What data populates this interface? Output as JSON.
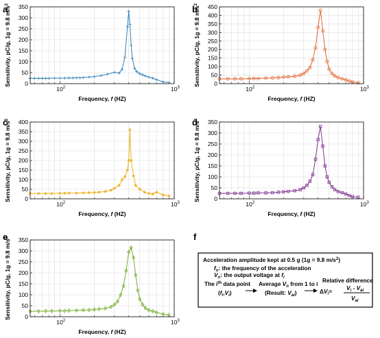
{
  "figure": {
    "panel_f_letter": "f",
    "box": {
      "line1": "Acceleration amplitude kept at 0.5 g (1g = 9.8 m/s",
      "line1_sup": "2",
      "line1_end": ")",
      "fn_sym": "f",
      "fn_sub": "n",
      "fn_text": ": the frequency of the acceleration",
      "vn_sym": "V",
      "vn_sub": "n",
      "vn_text": ": the output voltage at",
      "vn_f": "f",
      "vn_fsub": "i",
      "step1_a": "The i",
      "step1_sup": "th",
      "step1_b": " data point",
      "step1_pair_open": "(",
      "step1_f": "f",
      "step1_fi": "i",
      "step1_comma": ",",
      "step1_V": "V",
      "step1_Vi": "i",
      "step1_pair_close": ")",
      "step2_a": "Average ",
      "step2_V": "V",
      "step2_n": "n",
      "step2_b": " from 1 to i",
      "step2_c": "(Result: ",
      "step2_V2": "V",
      "step2_ai": "ai",
      "step2_d": ")",
      "step3_title": "Relative difference",
      "step3_delta": "Δ",
      "step3_V": "V",
      "step3_i": "i",
      "step3_eq": "=",
      "step3_num_V": "V",
      "step3_num_i": "i",
      "step3_num_minus": " - ",
      "step3_num_V2": "V",
      "step3_num_ai": "ai",
      "step3_den_V": "V",
      "step3_den_ai": "ai"
    }
  },
  "chart_data": [
    {
      "panel": "a",
      "type": "line",
      "color": "#2f7fb8",
      "marker": "plus",
      "xlabel": "Frequency, f (HZ)",
      "ylabel": "Sensitivity, pC/g, 1g = 9.8 m/s2",
      "xscale": "log",
      "xlim": [
        55,
        1000
      ],
      "ylim": [
        0,
        350
      ],
      "yticks": [
        0,
        50,
        100,
        150,
        200,
        250,
        300,
        350
      ],
      "xtick_labels": [
        "10^2",
        "10^3"
      ],
      "grid": true,
      "x": [
        55,
        60,
        65,
        70,
        75,
        80,
        90,
        100,
        110,
        120,
        130,
        140,
        150,
        160,
        180,
        200,
        230,
        260,
        300,
        330,
        350,
        370,
        390,
        400,
        410,
        420,
        430,
        450,
        470,
        500,
        530,
        560,
        600,
        650,
        700,
        800,
        900
      ],
      "y": [
        24,
        24,
        24,
        24,
        24,
        24,
        25,
        25,
        25,
        26,
        26,
        27,
        27,
        28,
        30,
        32,
        37,
        43,
        52,
        48,
        65,
        120,
        260,
        330,
        270,
        175,
        115,
        70,
        55,
        45,
        40,
        35,
        30,
        25,
        18,
        8,
        5
      ]
    },
    {
      "panel": "b",
      "type": "line",
      "color": "#e2622c",
      "marker": "circle",
      "xlabel": "Frequency, f (HZ)",
      "ylabel": "Sensitivity, pC/g, 1g = 9.8 m/s2",
      "xscale": "log",
      "xlim": [
        55,
        1000
      ],
      "ylim": [
        0,
        450
      ],
      "yticks": [
        0,
        50,
        100,
        150,
        200,
        250,
        300,
        350,
        400,
        450
      ],
      "xtick_labels": [
        "10^2",
        "10^3"
      ],
      "grid": true,
      "x": [
        55,
        65,
        75,
        85,
        100,
        110,
        120,
        140,
        160,
        180,
        200,
        220,
        250,
        280,
        300,
        320,
        340,
        360,
        380,
        400,
        420,
        440,
        460,
        480,
        500,
        530,
        560,
        600,
        650,
        700,
        750,
        800,
        900
      ],
      "y": [
        28,
        28,
        28,
        28,
        29,
        30,
        30,
        32,
        33,
        35,
        38,
        40,
        43,
        50,
        60,
        75,
        95,
        140,
        210,
        330,
        430,
        310,
        200,
        130,
        85,
        60,
        45,
        35,
        28,
        22,
        15,
        10,
        5
      ]
    },
    {
      "panel": "c",
      "type": "line",
      "color": "#ecb01f",
      "marker": "star",
      "xlabel": "Frequency, f (HZ)",
      "ylabel": "Sensitivity, pC/g, 1g = 9.8 m/s2",
      "xscale": "log",
      "xlim": [
        55,
        1000
      ],
      "ylim": [
        0,
        400
      ],
      "yticks": [
        0,
        50,
        100,
        150,
        200,
        250,
        300,
        350,
        400
      ],
      "xtick_labels": [
        "10^2",
        "10^3"
      ],
      "grid": true,
      "x": [
        55,
        65,
        75,
        85,
        100,
        110,
        120,
        140,
        160,
        180,
        200,
        220,
        250,
        280,
        300,
        330,
        350,
        370,
        390,
        400,
        410,
        420,
        440,
        460,
        500,
        550,
        600,
        650,
        700,
        800,
        900
      ],
      "y": [
        28,
        28,
        28,
        28,
        29,
        29,
        30,
        30,
        31,
        32,
        33,
        35,
        38,
        45,
        55,
        70,
        100,
        115,
        150,
        200,
        360,
        200,
        120,
        70,
        50,
        35,
        28,
        25,
        35,
        20,
        15
      ]
    },
    {
      "panel": "d",
      "type": "line",
      "color": "#7e2f8e",
      "marker": "square",
      "xlabel": "Frequency, f (HZ)",
      "ylabel": "Sensitivity, pC/g, 1g = 9.8 m/s2",
      "xscale": "log",
      "xlim": [
        55,
        1000
      ],
      "ylim": [
        0,
        350
      ],
      "yticks": [
        0,
        50,
        100,
        150,
        200,
        250,
        300,
        350
      ],
      "xtick_labels": [
        "10^2",
        "10^3"
      ],
      "grid": true,
      "x": [
        55,
        65,
        75,
        85,
        100,
        110,
        120,
        140,
        160,
        180,
        200,
        220,
        250,
        280,
        300,
        320,
        340,
        360,
        380,
        400,
        420,
        440,
        460,
        480,
        500,
        530,
        560,
        600,
        650,
        700,
        750,
        800,
        900
      ],
      "y": [
        25,
        25,
        25,
        25,
        26,
        26,
        27,
        27,
        28,
        30,
        32,
        34,
        37,
        42,
        50,
        62,
        80,
        110,
        180,
        270,
        330,
        240,
        150,
        100,
        75,
        55,
        42,
        33,
        28,
        22,
        15,
        10,
        7
      ]
    },
    {
      "panel": "e",
      "type": "line",
      "color": "#77ac30",
      "marker": "diamond",
      "xlabel": "Frequency, f (HZ)",
      "ylabel": "Sensitivity, pC/g, 1g = 9.8 m/s2",
      "xscale": "log",
      "xlim": [
        55,
        1000
      ],
      "ylim": [
        0,
        350
      ],
      "yticks": [
        0,
        50,
        100,
        150,
        200,
        250,
        300,
        350
      ],
      "xtick_labels": [
        "10^2",
        "10^3"
      ],
      "grid": true,
      "x": [
        55,
        65,
        75,
        85,
        100,
        110,
        120,
        140,
        160,
        180,
        200,
        220,
        250,
        280,
        300,
        320,
        340,
        360,
        380,
        400,
        420,
        440,
        460,
        480,
        500,
        530,
        560,
        600,
        650,
        700,
        800,
        900
      ],
      "y": [
        25,
        25,
        26,
        26,
        27,
        27,
        28,
        29,
        30,
        31,
        33,
        35,
        38,
        45,
        55,
        70,
        100,
        140,
        210,
        295,
        315,
        270,
        190,
        120,
        80,
        55,
        40,
        30,
        25,
        20,
        12,
        8
      ]
    }
  ]
}
